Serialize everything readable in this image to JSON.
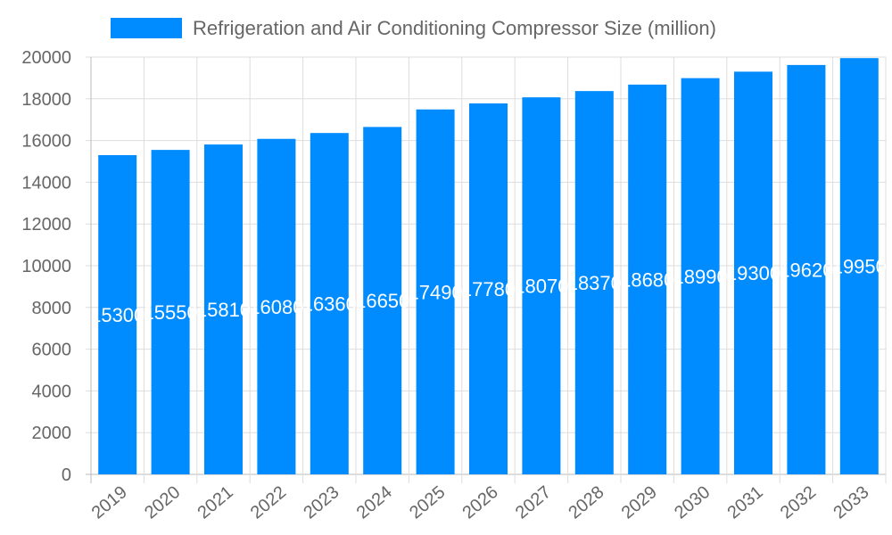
{
  "chart_data": {
    "type": "bar",
    "title": "",
    "xlabel": "",
    "ylabel": "",
    "categories": [
      "2019",
      "2020",
      "2021",
      "2022",
      "2023",
      "2024",
      "2025",
      "2026",
      "2027",
      "2028",
      "2029",
      "2030",
      "2031",
      "2032",
      "2033"
    ],
    "series": [
      {
        "name": "Refrigeration and Air Conditioning Compressor Size (million)",
        "values": [
          15300,
          15550,
          15810,
          16080,
          16360,
          16650,
          17490,
          17780,
          18070,
          18370,
          18680,
          18990,
          19300,
          19620,
          19950
        ]
      }
    ],
    "ylim": [
      0,
      20000
    ],
    "yticks": [
      0,
      2000,
      4000,
      6000,
      8000,
      10000,
      12000,
      14000,
      16000,
      18000,
      20000
    ],
    "grid": true,
    "legend_position": "top",
    "data_labels": true,
    "colors": {
      "bar": "#008cff",
      "grid": "#dddddd",
      "text": "#666666"
    }
  }
}
